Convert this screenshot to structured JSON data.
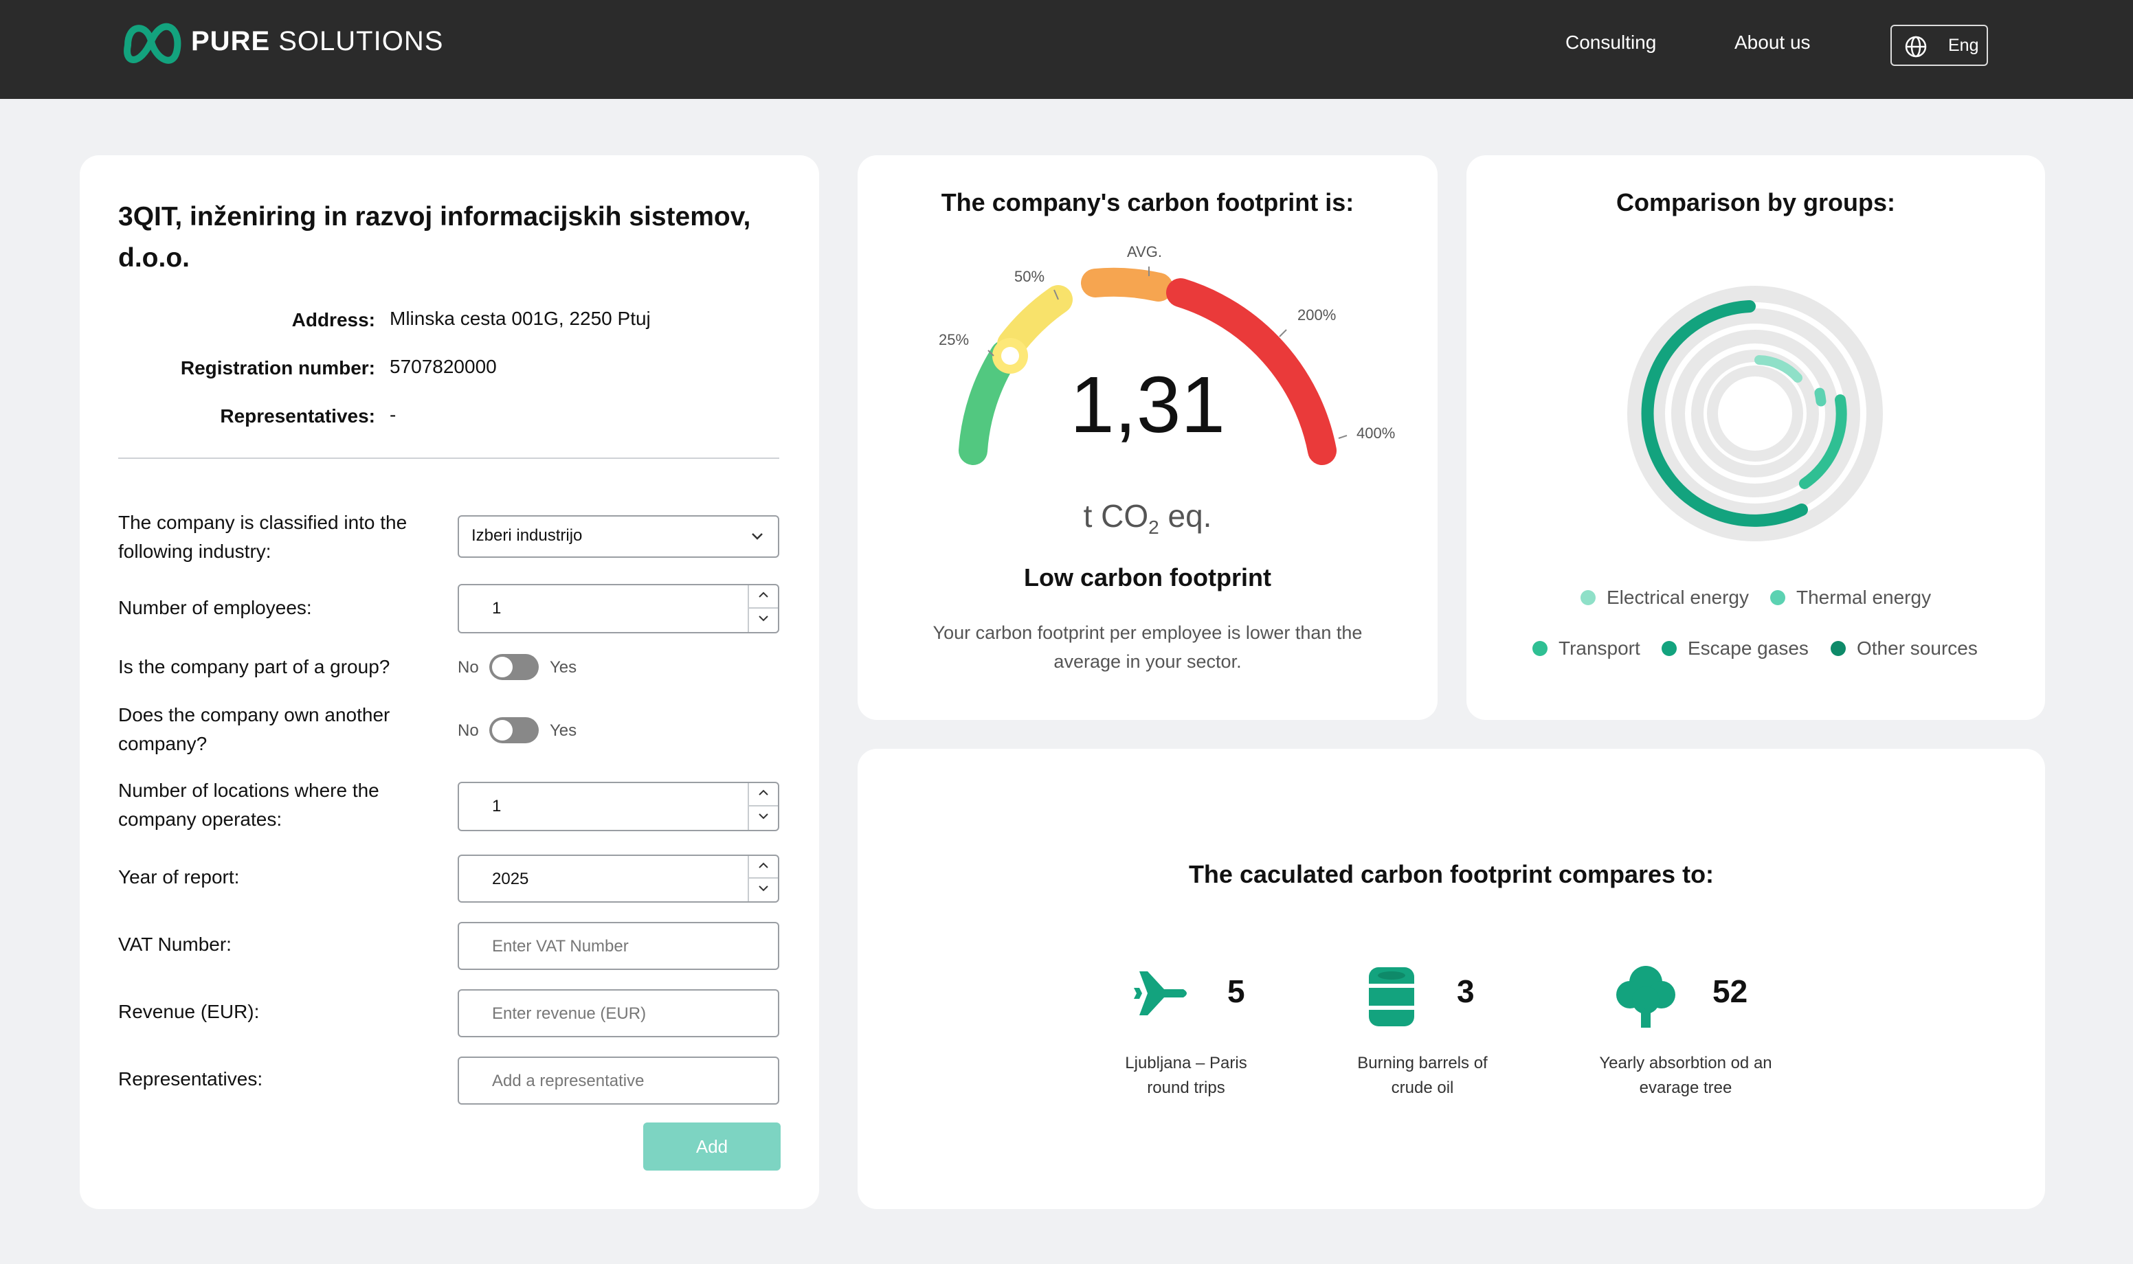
{
  "header": {
    "brand_bold": "PURE",
    "brand_light": " SOLUTIONS",
    "nav": [
      "Consulting",
      "About us"
    ],
    "language": "Eng",
    "colors": {
      "bar": "#2b2b2b",
      "logo": "#13a37e"
    }
  },
  "company": {
    "name": "3QIT, inženiring in razvoj informacijskih sistemov, d.o.o.",
    "address_label": "Address:",
    "address": "Mlinska cesta 001G, 2250 Ptuj",
    "reg_label": "Registration number:",
    "reg": "5707820000",
    "rep_label": "Representatives:",
    "rep": "-"
  },
  "form": {
    "industry_label": "The company is classified into the following industry:",
    "industry_value": "Izberi industrijo",
    "employees_label": "Number of employees:",
    "employees_value": "1",
    "group_label": "Is the company part of a group?",
    "own_label": "Does the company own another company?",
    "no": "No",
    "yes": "Yes",
    "locations_label": "Number of locations where the company operates:",
    "locations_value": "1",
    "year_label": "Year of report:",
    "year_value": "2025",
    "vat_label": "VAT Number:",
    "vat_placeholder": "Enter VAT Number",
    "revenue_label": "Revenue (EUR):",
    "revenue_placeholder": "Enter revenue (EUR)",
    "reps_label": "Representatives:",
    "reps_placeholder": "Add a representative",
    "add_button": "Add"
  },
  "footprint": {
    "title": "The company's carbon footprint is:",
    "value": "1,31",
    "unit_main": "t CO",
    "unit_sub": "2",
    "unit_end": " eq.",
    "ticks": [
      "25%",
      "50%",
      "AVG.",
      "200%",
      "400%"
    ],
    "level": "Low carbon footprint",
    "description": "Your carbon footprint per employee is lower than the average in your sector."
  },
  "groups": {
    "title": "Comparison by groups:",
    "legend": [
      {
        "label": "Electrical energy",
        "color": "#8fe0c8"
      },
      {
        "label": "Thermal energy",
        "color": "#5cd2b2"
      },
      {
        "label": "Transport",
        "color": "#2fbf93"
      },
      {
        "label": "Escape gases",
        "color": "#13a37e"
      },
      {
        "label": "Other sources",
        "color": "#0e8a69"
      }
    ]
  },
  "comparison": {
    "title": "The caculated carbon footprint compares to:",
    "items": [
      {
        "number": "5",
        "label": "Ljubljana – Paris round trips",
        "icon": "airplane-icon"
      },
      {
        "number": "3",
        "label": "Burning barrels of crude oil",
        "icon": "barrel-icon"
      },
      {
        "number": "52",
        "label": "Yearly absorbtion od an evarage tree",
        "icon": "tree-icon"
      }
    ]
  }
}
